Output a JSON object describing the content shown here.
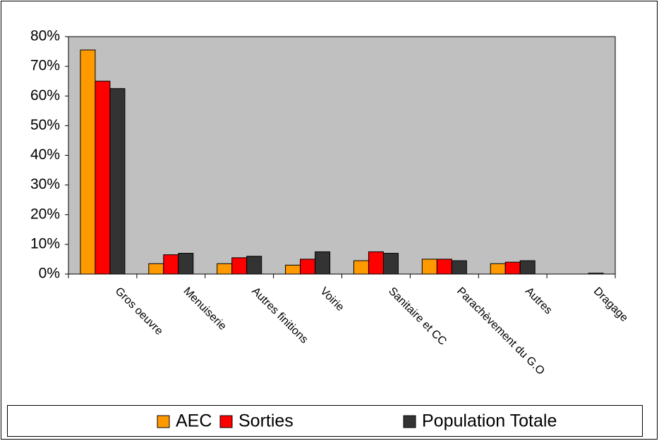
{
  "chart_data": {
    "type": "bar",
    "categories": [
      "Gros oeuvre",
      "Menuiserie",
      "Autres finitions",
      "Voirie",
      "Sanitaire et CC",
      "Parachèvement du G.O",
      "Autres",
      "Dragage"
    ],
    "series": [
      {
        "name": "AEC",
        "color": "#ff9900",
        "values": [
          75.5,
          3.5,
          3.5,
          3,
          4.5,
          5,
          3.5,
          0
        ]
      },
      {
        "name": "Sorties",
        "color": "#ff0000",
        "values": [
          65,
          6.5,
          5.5,
          5,
          7.5,
          5,
          4,
          0
        ]
      },
      {
        "name": "Population Totale",
        "color": "#333333",
        "values": [
          62.5,
          7,
          6,
          7.5,
          7,
          4.5,
          4.5,
          0.3
        ]
      }
    ],
    "ylim": [
      0,
      80
    ],
    "yticks": [
      {
        "value": 0,
        "label": "0%"
      },
      {
        "value": 10,
        "label": "10%"
      },
      {
        "value": 20,
        "label": "20%"
      },
      {
        "value": 30,
        "label": "30%"
      },
      {
        "value": 40,
        "label": "40%"
      },
      {
        "value": 50,
        "label": "50%"
      },
      {
        "value": 60,
        "label": "60%"
      },
      {
        "value": 70,
        "label": "70%"
      },
      {
        "value": 80,
        "label": "80%"
      }
    ],
    "plot_background": "#c0c0c0",
    "legend": "bottom"
  }
}
